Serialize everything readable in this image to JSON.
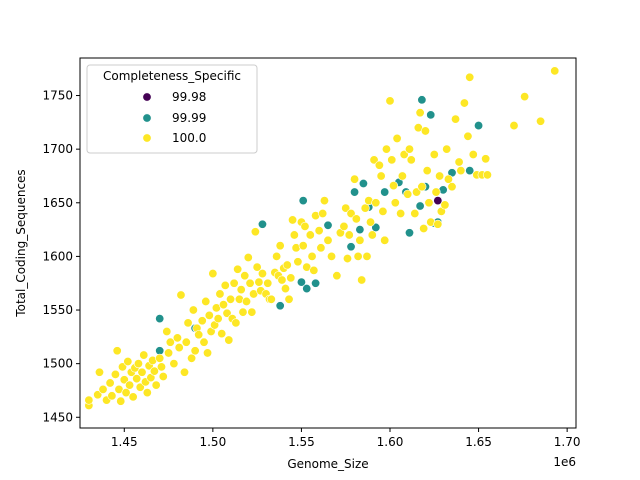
{
  "chart_data": {
    "type": "scatter",
    "xlabel": "Genome_Size",
    "ylabel": "Total_Coding_Sequences",
    "x_offset_text": "1e6",
    "xlim": [
      1.425,
      1.705
    ],
    "ylim": [
      1440,
      1785
    ],
    "x_ticks": [
      1.45,
      1.5,
      1.55,
      1.6,
      1.65,
      1.7
    ],
    "x_tick_labels": [
      "1.45",
      "1.50",
      "1.55",
      "1.60",
      "1.65",
      "1.70"
    ],
    "y_ticks": [
      1450,
      1500,
      1550,
      1600,
      1650,
      1700,
      1750
    ],
    "y_tick_labels": [
      "1450",
      "1500",
      "1550",
      "1600",
      "1650",
      "1700",
      "1750"
    ],
    "grid": false,
    "legend": {
      "title": "Completeness_Specific",
      "placement": "top-left",
      "entries": [
        "99.98",
        "99.99",
        "100.0"
      ]
    },
    "series": [
      {
        "name": "99.98",
        "color": "#440154",
        "points": [
          [
            1.627,
            1652
          ]
        ]
      },
      {
        "name": "99.99",
        "color": "#21918c",
        "points": [
          [
            1.47,
            1542
          ],
          [
            1.47,
            1512
          ],
          [
            1.49,
            1533
          ],
          [
            1.528,
            1630
          ],
          [
            1.538,
            1554
          ],
          [
            1.551,
            1652
          ],
          [
            1.55,
            1576
          ],
          [
            1.553,
            1570
          ],
          [
            1.558,
            1575
          ],
          [
            1.565,
            1629
          ],
          [
            1.578,
            1609
          ],
          [
            1.58,
            1660
          ],
          [
            1.583,
            1625
          ],
          [
            1.585,
            1668
          ],
          [
            1.588,
            1646
          ],
          [
            1.59,
            1620
          ],
          [
            1.592,
            1627
          ],
          [
            1.597,
            1660
          ],
          [
            1.605,
            1669
          ],
          [
            1.609,
            1660
          ],
          [
            1.611,
            1622
          ],
          [
            1.617,
            1647
          ],
          [
            1.618,
            1746
          ],
          [
            1.62,
            1665
          ],
          [
            1.623,
            1732
          ],
          [
            1.625,
            1631
          ],
          [
            1.627,
            1632
          ],
          [
            1.63,
            1662
          ],
          [
            1.635,
            1678
          ],
          [
            1.645,
            1680
          ],
          [
            1.65,
            1722
          ]
        ]
      },
      {
        "name": "100.0",
        "color": "#fde725",
        "points": [
          [
            1.43,
            1461
          ],
          [
            1.43,
            1466
          ],
          [
            1.435,
            1471
          ],
          [
            1.436,
            1492
          ],
          [
            1.438,
            1476
          ],
          [
            1.44,
            1466
          ],
          [
            1.442,
            1482
          ],
          [
            1.443,
            1470
          ],
          [
            1.445,
            1490
          ],
          [
            1.446,
            1512
          ],
          [
            1.447,
            1476
          ],
          [
            1.448,
            1465
          ],
          [
            1.449,
            1497
          ],
          [
            1.45,
            1485
          ],
          [
            1.451,
            1473
          ],
          [
            1.452,
            1502
          ],
          [
            1.453,
            1480
          ],
          [
            1.454,
            1492
          ],
          [
            1.455,
            1469
          ],
          [
            1.456,
            1496
          ],
          [
            1.457,
            1486
          ],
          [
            1.458,
            1500
          ],
          [
            1.459,
            1478
          ],
          [
            1.46,
            1492
          ],
          [
            1.461,
            1508
          ],
          [
            1.462,
            1483
          ],
          [
            1.463,
            1473
          ],
          [
            1.464,
            1498
          ],
          [
            1.465,
            1487
          ],
          [
            1.466,
            1503
          ],
          [
            1.467,
            1493
          ],
          [
            1.468,
            1480
          ],
          [
            1.47,
            1505
          ],
          [
            1.471,
            1497
          ],
          [
            1.472,
            1488
          ],
          [
            1.474,
            1530
          ],
          [
            1.475,
            1510
          ],
          [
            1.476,
            1520
          ],
          [
            1.478,
            1500
          ],
          [
            1.48,
            1524
          ],
          [
            1.481,
            1515
          ],
          [
            1.482,
            1564
          ],
          [
            1.484,
            1492
          ],
          [
            1.485,
            1520
          ],
          [
            1.486,
            1538
          ],
          [
            1.488,
            1505
          ],
          [
            1.489,
            1550
          ],
          [
            1.49,
            1512
          ],
          [
            1.491,
            1533
          ],
          [
            1.492,
            1527
          ],
          [
            1.494,
            1540
          ],
          [
            1.495,
            1520
          ],
          [
            1.496,
            1558
          ],
          [
            1.497,
            1510
          ],
          [
            1.498,
            1545
          ],
          [
            1.499,
            1530
          ],
          [
            1.5,
            1584
          ],
          [
            1.501,
            1536
          ],
          [
            1.502,
            1552
          ],
          [
            1.503,
            1542
          ],
          [
            1.504,
            1565
          ],
          [
            1.505,
            1528
          ],
          [
            1.506,
            1555
          ],
          [
            1.507,
            1573
          ],
          [
            1.508,
            1547
          ],
          [
            1.509,
            1522
          ],
          [
            1.51,
            1560
          ],
          [
            1.511,
            1542
          ],
          [
            1.512,
            1575
          ],
          [
            1.513,
            1538
          ],
          [
            1.514,
            1588
          ],
          [
            1.515,
            1560
          ],
          [
            1.516,
            1569
          ],
          [
            1.517,
            1548
          ],
          [
            1.518,
            1582
          ],
          [
            1.519,
            1558
          ],
          [
            1.52,
            1599
          ],
          [
            1.521,
            1575
          ],
          [
            1.522,
            1548
          ],
          [
            1.523,
            1565
          ],
          [
            1.524,
            1623
          ],
          [
            1.525,
            1590
          ],
          [
            1.526,
            1576
          ],
          [
            1.527,
            1568
          ],
          [
            1.528,
            1584
          ],
          [
            1.53,
            1565
          ],
          [
            1.531,
            1575
          ],
          [
            1.532,
            1560
          ],
          [
            1.533,
            1560
          ],
          [
            1.535,
            1585
          ],
          [
            1.536,
            1600
          ],
          [
            1.537,
            1582
          ],
          [
            1.538,
            1610
          ],
          [
            1.539,
            1578
          ],
          [
            1.54,
            1589
          ],
          [
            1.541,
            1570
          ],
          [
            1.542,
            1592
          ],
          [
            1.543,
            1560
          ],
          [
            1.544,
            1580
          ],
          [
            1.545,
            1634
          ],
          [
            1.546,
            1620
          ],
          [
            1.547,
            1608
          ],
          [
            1.548,
            1595
          ],
          [
            1.55,
            1632
          ],
          [
            1.551,
            1610
          ],
          [
            1.552,
            1628
          ],
          [
            1.553,
            1590
          ],
          [
            1.555,
            1620
          ],
          [
            1.556,
            1600
          ],
          [
            1.557,
            1587
          ],
          [
            1.558,
            1638
          ],
          [
            1.56,
            1624
          ],
          [
            1.561,
            1608
          ],
          [
            1.562,
            1640
          ],
          [
            1.563,
            1652
          ],
          [
            1.565,
            1615
          ],
          [
            1.567,
            1600
          ],
          [
            1.57,
            1582
          ],
          [
            1.572,
            1622
          ],
          [
            1.574,
            1628
          ],
          [
            1.575,
            1645
          ],
          [
            1.576,
            1598
          ],
          [
            1.577,
            1620
          ],
          [
            1.578,
            1640
          ],
          [
            1.58,
            1672
          ],
          [
            1.581,
            1635
          ],
          [
            1.582,
            1600
          ],
          [
            1.583,
            1615
          ],
          [
            1.584,
            1578
          ],
          [
            1.586,
            1645
          ],
          [
            1.587,
            1600
          ],
          [
            1.588,
            1652
          ],
          [
            1.589,
            1632
          ],
          [
            1.59,
            1620
          ],
          [
            1.591,
            1690
          ],
          [
            1.592,
            1650
          ],
          [
            1.594,
            1685
          ],
          [
            1.595,
            1675
          ],
          [
            1.596,
            1642
          ],
          [
            1.597,
            1615
          ],
          [
            1.598,
            1700
          ],
          [
            1.6,
            1745
          ],
          [
            1.601,
            1690
          ],
          [
            1.602,
            1666
          ],
          [
            1.603,
            1650
          ],
          [
            1.604,
            1710
          ],
          [
            1.606,
            1640
          ],
          [
            1.607,
            1675
          ],
          [
            1.608,
            1695
          ],
          [
            1.61,
            1658
          ],
          [
            1.611,
            1700
          ],
          [
            1.612,
            1690
          ],
          [
            1.614,
            1640
          ],
          [
            1.615,
            1660
          ],
          [
            1.616,
            1720
          ],
          [
            1.617,
            1734
          ],
          [
            1.618,
            1665
          ],
          [
            1.619,
            1626
          ],
          [
            1.62,
            1717
          ],
          [
            1.621,
            1680
          ],
          [
            1.622,
            1650
          ],
          [
            1.623,
            1632
          ],
          [
            1.625,
            1695
          ],
          [
            1.626,
            1660
          ],
          [
            1.627,
            1630
          ],
          [
            1.628,
            1675
          ],
          [
            1.629,
            1642
          ],
          [
            1.631,
            1648
          ],
          [
            1.632,
            1700
          ],
          [
            1.633,
            1672
          ],
          [
            1.635,
            1665
          ],
          [
            1.637,
            1728
          ],
          [
            1.639,
            1688
          ],
          [
            1.64,
            1680
          ],
          [
            1.642,
            1743
          ],
          [
            1.644,
            1712
          ],
          [
            1.645,
            1767
          ],
          [
            1.647,
            1695
          ],
          [
            1.649,
            1676
          ],
          [
            1.652,
            1676
          ],
          [
            1.654,
            1691
          ],
          [
            1.655,
            1676
          ],
          [
            1.67,
            1722
          ],
          [
            1.676,
            1749
          ],
          [
            1.685,
            1726
          ],
          [
            1.693,
            1773
          ]
        ]
      }
    ]
  }
}
